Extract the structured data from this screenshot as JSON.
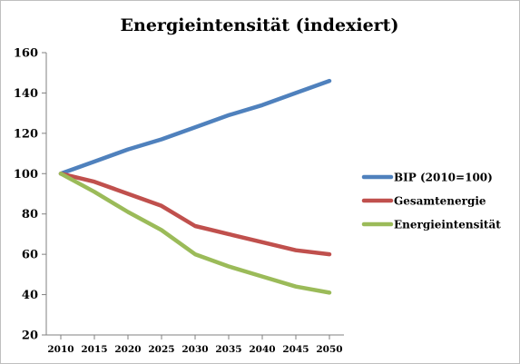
{
  "chart_data": {
    "type": "line",
    "title": "Energieintensität (indexiert)",
    "xlabel": "",
    "ylabel": "",
    "x": [
      "2010",
      "2015",
      "2020",
      "2025",
      "2030",
      "2035",
      "2040",
      "2045",
      "2050"
    ],
    "ylim": [
      20,
      160
    ],
    "yticks": [
      "20",
      "40",
      "60",
      "80",
      "100",
      "120",
      "140",
      "160"
    ],
    "grid": false,
    "legend_position": "right",
    "series": [
      {
        "name": "BIP (2010=100)",
        "color": "#4f81bd",
        "values": [
          100,
          106,
          112,
          117,
          123,
          129,
          134,
          140,
          146
        ]
      },
      {
        "name": "Gesamtenergie",
        "color": "#c0504d",
        "values": [
          100,
          96,
          90,
          84,
          74,
          70,
          66,
          62,
          60
        ]
      },
      {
        "name": "Energieintensität",
        "color": "#9bbb59",
        "values": [
          100,
          91,
          81,
          72,
          60,
          54,
          49,
          44,
          41
        ]
      }
    ]
  }
}
